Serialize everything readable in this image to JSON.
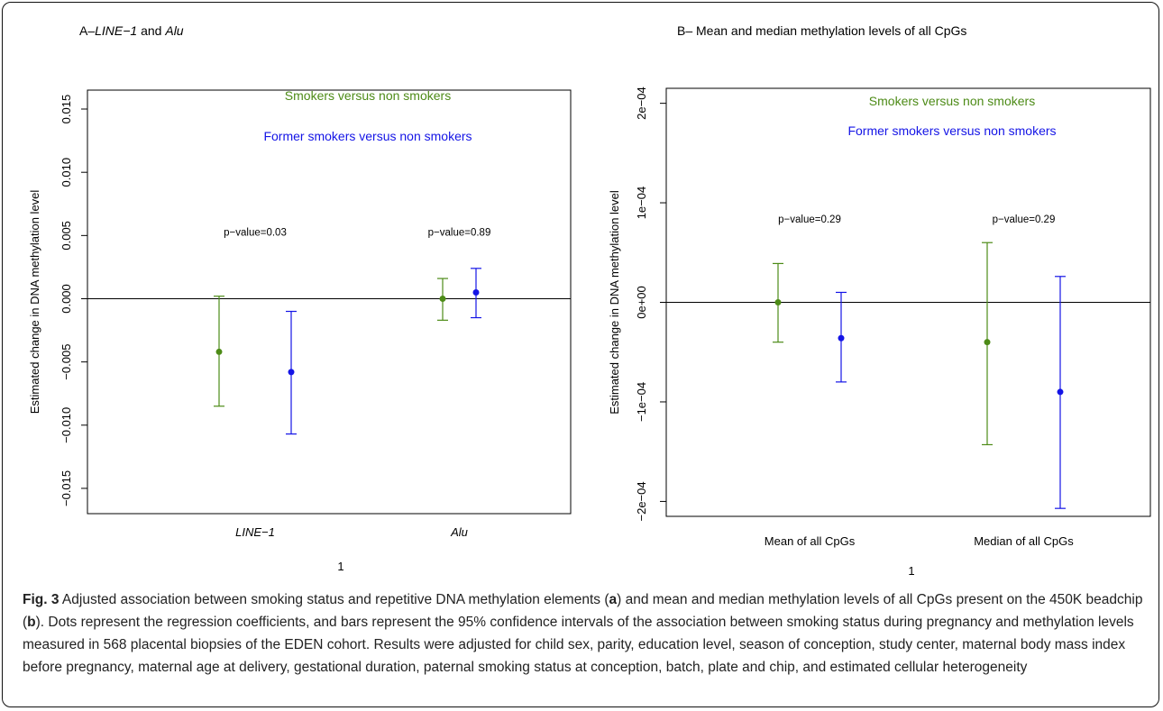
{
  "colors": {
    "smokers": "#4d8b17",
    "former": "#1414e6",
    "axis": "#000000"
  },
  "chart_data": [
    {
      "type": "scatter",
      "panel": "A",
      "title_prefix": "A–",
      "title_italic": "LINE−1",
      "title_mid": " and ",
      "title_italic2": "Alu",
      "ylabel": "Estimated change in DNA methylation level",
      "xlabel": "1",
      "ylim": [
        -0.017,
        0.0165
      ],
      "yticks": [
        -0.015,
        -0.01,
        -0.005,
        0.0,
        0.005,
        0.01,
        0.015
      ],
      "ytick_labels": [
        "−0.015",
        "−0.010",
        "−0.005",
        "0.000",
        "0.005",
        "0.010",
        "0.015"
      ],
      "categories": [
        "LINE−1",
        "Alu"
      ],
      "reference_line": 0,
      "legend": [
        "Smokers versus non smokers",
        "Former smokers versus non smokers"
      ],
      "pvalues": [
        "p−value=0.03",
        "p−value=0.89"
      ],
      "pvalue_y": 0.005,
      "series": [
        {
          "name": "Smokers versus non smokers",
          "estimate": [
            -0.0042,
            0.0
          ],
          "lower": [
            -0.0085,
            -0.0017
          ],
          "upper": [
            0.0002,
            0.0016
          ]
        },
        {
          "name": "Former smokers versus non smokers",
          "estimate": [
            -0.0058,
            0.0005
          ],
          "lower": [
            -0.0107,
            -0.0015
          ],
          "upper": [
            -0.001,
            0.0024
          ]
        }
      ]
    },
    {
      "type": "scatter",
      "panel": "B",
      "title_prefix": "B– ",
      "title_italic": "",
      "title_mid": "Mean and median methylation levels of all CpGs",
      "title_italic2": "",
      "ylabel": "Estimated change in DNA methylation level",
      "xlabel": "1",
      "ylim": [
        -0.000215,
        0.000215
      ],
      "yticks": [
        -0.0002,
        -0.0001,
        0.0,
        0.0001,
        0.0002
      ],
      "ytick_labels": [
        "−2e−04",
        "−1e−04",
        "0e+00",
        "1e−04",
        "2e−04"
      ],
      "categories": [
        "Mean of all CpGs",
        "Median of all CpGs"
      ],
      "reference_line": 0,
      "legend": [
        "Smokers versus non smokers",
        "Former smokers versus non smokers"
      ],
      "pvalues": [
        "p−value=0.29",
        "p−value=0.29"
      ],
      "pvalue_y": 8e-05,
      "series": [
        {
          "name": "Smokers versus non smokers",
          "estimate": [
            0.0,
            -4e-05
          ],
          "lower": [
            -4e-05,
            -0.000143
          ],
          "upper": [
            3.9e-05,
            6e-05
          ]
        },
        {
          "name": "Former smokers versus non smokers",
          "estimate": [
            -3.6e-05,
            -9e-05
          ],
          "lower": [
            -8e-05,
            -0.000207
          ],
          "upper": [
            1e-05,
            2.6e-05
          ]
        }
      ]
    }
  ],
  "caption": {
    "label": "Fig. 3",
    "part1": " Adjusted association between smoking status and repetitive DNA methylation elements (",
    "a": "a",
    "part2": ") and mean and median methylation levels of all CpGs present on the 450K beadchip (",
    "b": "b",
    "part3": "). Dots represent the regression coefficients, and bars represent the 95% confidence intervals of the association between smoking status during pregnancy and methylation levels measured in 568 placental biopsies of the EDEN cohort. Results were adjusted for child sex, parity, education level, season of conception, study center, maternal body mass index before pregnancy, maternal age at delivery, gestational duration, paternal smoking status at conception, batch, plate and chip, and estimated cellular heterogeneity"
  }
}
